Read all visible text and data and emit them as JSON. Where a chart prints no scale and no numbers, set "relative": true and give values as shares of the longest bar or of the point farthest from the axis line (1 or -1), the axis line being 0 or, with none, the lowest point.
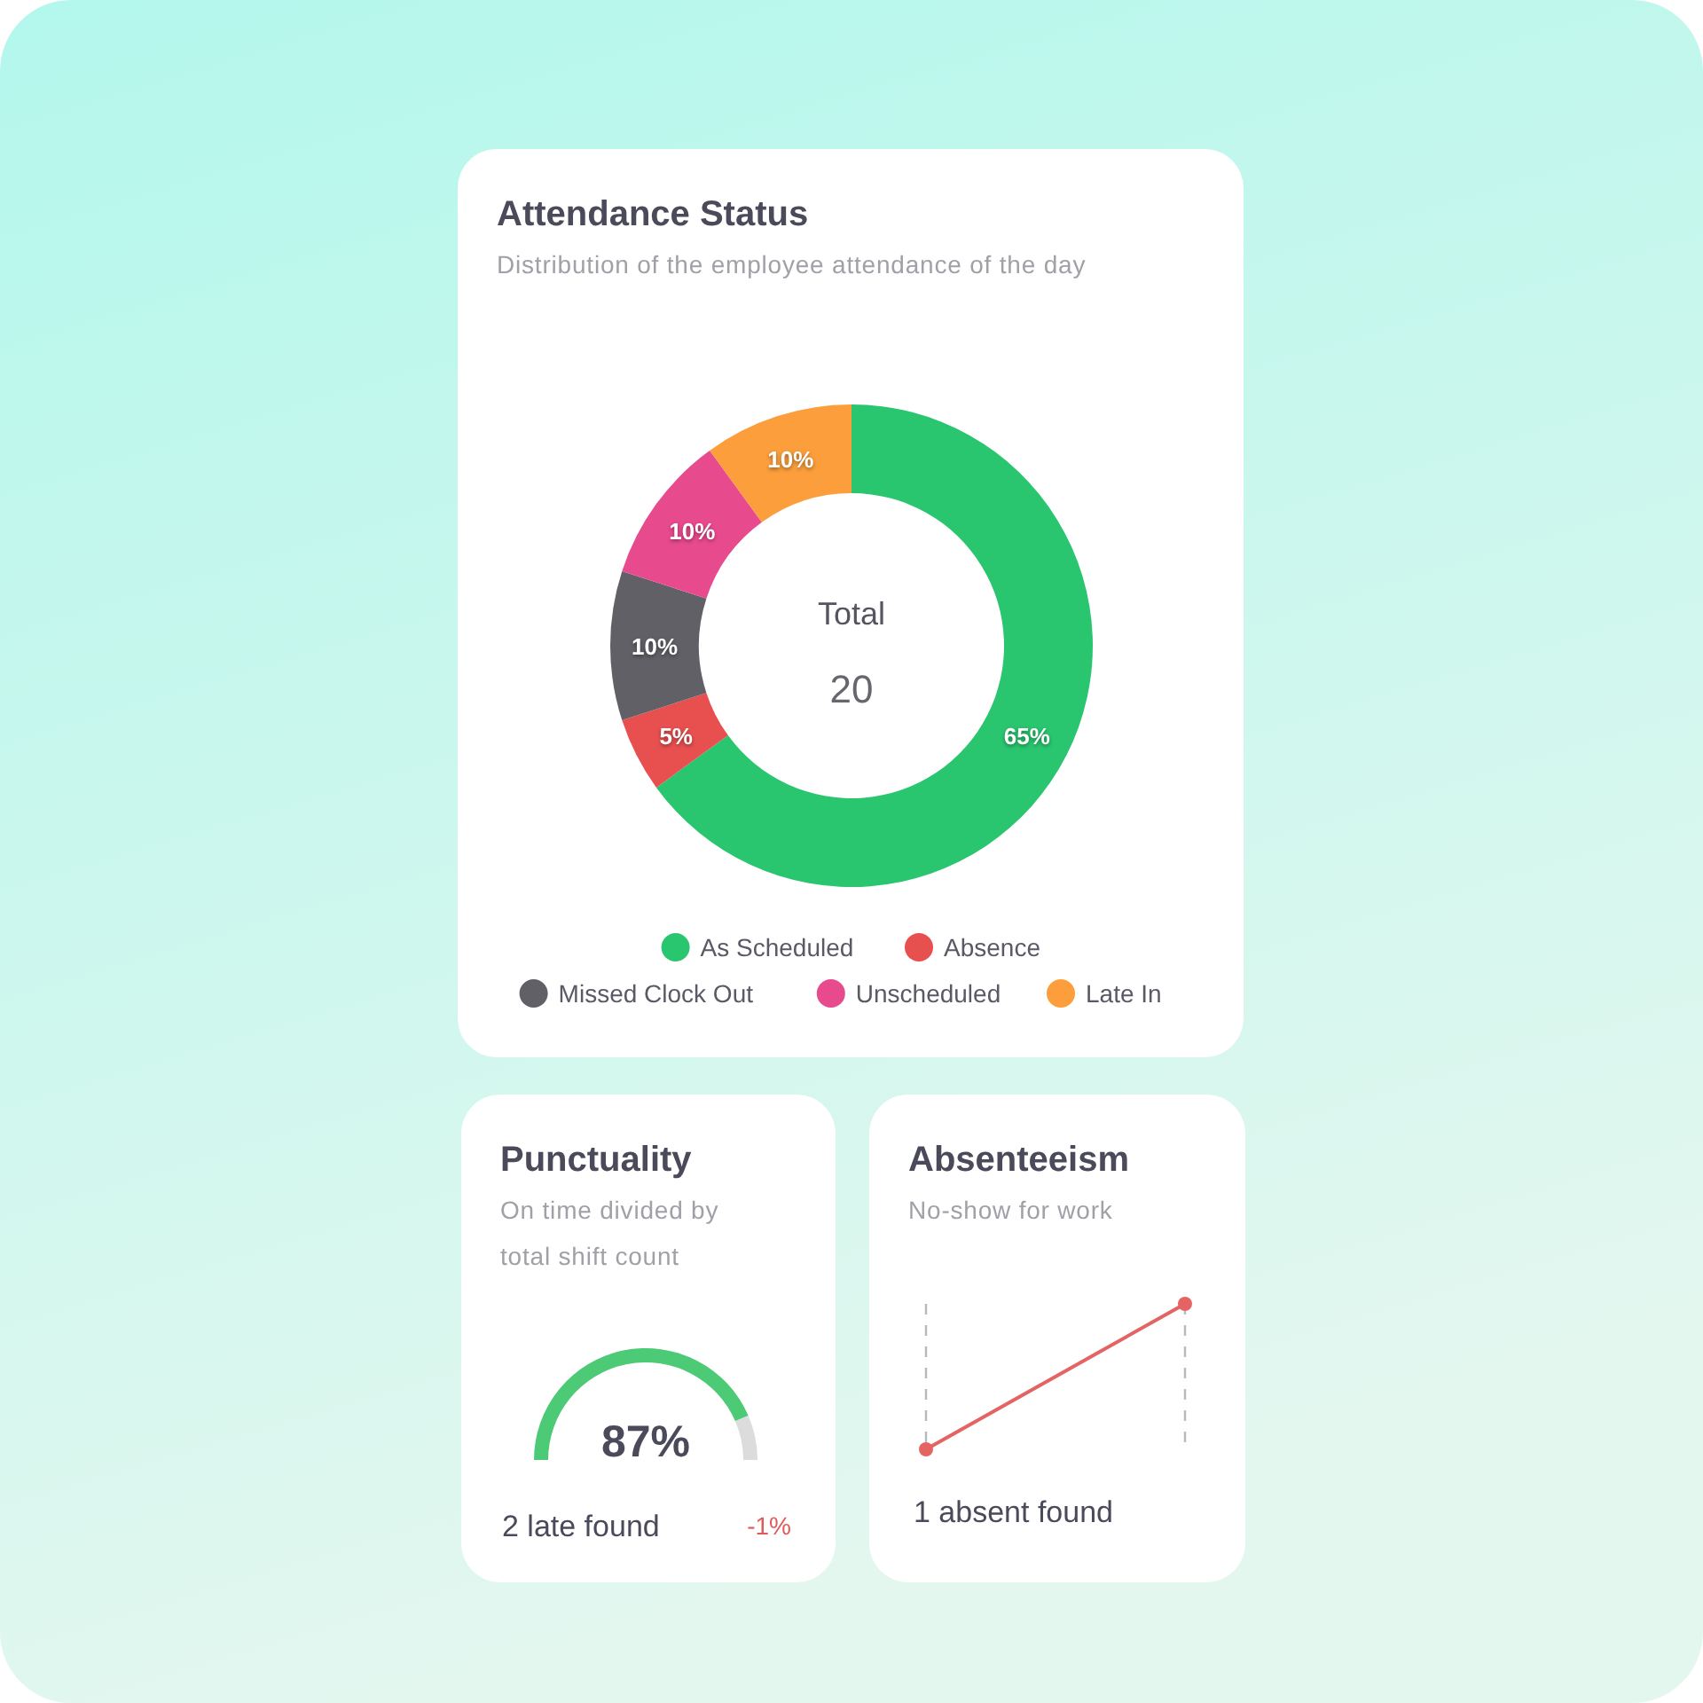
{
  "chart_data": [
    {
      "type": "donut",
      "title": "Attendance Status",
      "subtitle": "Distribution of the employee attendance of the day",
      "categories": [
        "As Scheduled",
        "Absence",
        "Missed Clock Out",
        "Unscheduled",
        "Late In"
      ],
      "values": [
        65,
        5,
        10,
        10,
        10
      ],
      "colors": [
        "#29c66f",
        "#e85050",
        "#606066",
        "#e84a8e",
        "#fb9e3b"
      ],
      "value_labels": [
        "65%",
        "5%",
        "10%",
        "10%",
        "10%"
      ],
      "annotations": [
        "Total",
        "20"
      ],
      "legend": "bottom"
    },
    {
      "type": "donut",
      "title": "Punctuality",
      "subtitle": "On time divided by total shift count",
      "categories": [
        null,
        null
      ],
      "values": [
        87,
        13
      ],
      "colors": [
        "#4cca76",
        "#dcdcdc"
      ],
      "value_labels": [
        "87%",
        null
      ],
      "annotations": [
        "2 late found",
        "-1%"
      ],
      "legend": false
    },
    {
      "type": "line",
      "title": "Absenteeism",
      "subtitle": "No-show for work",
      "categories": [
        null,
        null
      ],
      "relative": true,
      "series": [
        {
          "color": "#e46464",
          "values": [
            0,
            1
          ]
        }
      ],
      "marker": "circle",
      "annotations": [
        "1 absent found"
      ],
      "legend": false
    }
  ]
}
